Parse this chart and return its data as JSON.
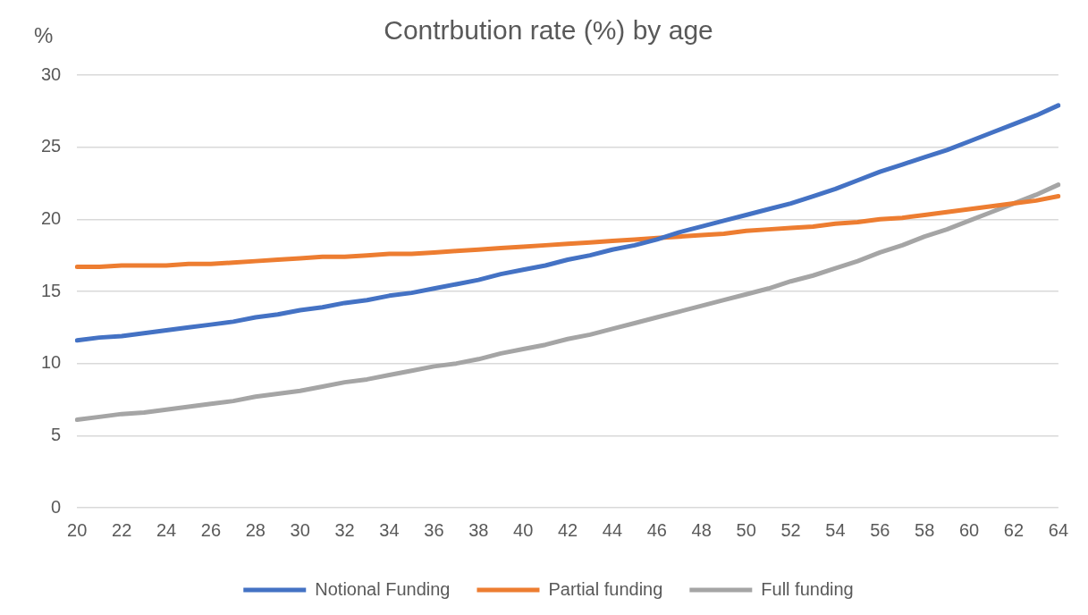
{
  "chart_data": {
    "type": "line",
    "title": "Contrbution rate (%) by age",
    "ylabel": "%",
    "categories": [
      "20",
      null,
      "22",
      null,
      "24",
      null,
      "26",
      null,
      "28",
      null,
      "30",
      null,
      "32",
      null,
      "34",
      null,
      "36",
      null,
      "38",
      null,
      "40",
      null,
      "42",
      null,
      "44",
      null,
      "46",
      null,
      "48",
      null,
      "50",
      null,
      "52",
      null,
      "54",
      null,
      "56",
      null,
      "58",
      null,
      "60",
      null,
      "62",
      null,
      "64"
    ],
    "series": [
      {
        "name": "Notional Funding",
        "color": "#4472c4",
        "values": [
          11.6,
          11.8,
          11.9,
          12.1,
          12.3,
          12.5,
          12.7,
          12.9,
          13.2,
          13.4,
          13.7,
          13.9,
          14.2,
          14.4,
          14.7,
          14.9,
          15.2,
          15.5,
          15.8,
          16.2,
          16.5,
          16.8,
          17.2,
          17.5,
          17.9,
          18.2,
          18.6,
          19.1,
          19.5,
          19.9,
          20.3,
          20.7,
          21.1,
          21.6,
          22.1,
          22.7,
          23.3,
          23.8,
          24.3,
          24.8,
          25.4,
          26.0,
          26.6,
          27.2,
          27.9
        ]
      },
      {
        "name": "Partial funding",
        "color": "#ed7d31",
        "values": [
          16.7,
          16.7,
          16.8,
          16.8,
          16.8,
          16.9,
          16.9,
          17.0,
          17.1,
          17.2,
          17.3,
          17.4,
          17.4,
          17.5,
          17.6,
          17.6,
          17.7,
          17.8,
          17.9,
          18.0,
          18.1,
          18.2,
          18.3,
          18.4,
          18.5,
          18.6,
          18.7,
          18.8,
          18.9,
          19.0,
          19.2,
          19.3,
          19.4,
          19.5,
          19.7,
          19.8,
          20.0,
          20.1,
          20.3,
          20.5,
          20.7,
          20.9,
          21.1,
          21.3,
          21.6
        ]
      },
      {
        "name": "Full funding",
        "color": "#a5a5a5",
        "values": [
          6.1,
          6.3,
          6.5,
          6.6,
          6.8,
          7.0,
          7.2,
          7.4,
          7.7,
          7.9,
          8.1,
          8.4,
          8.7,
          8.9,
          9.2,
          9.5,
          9.8,
          10.0,
          10.3,
          10.7,
          11.0,
          11.3,
          11.7,
          12.0,
          12.4,
          12.8,
          13.2,
          13.6,
          14.0,
          14.4,
          14.8,
          15.2,
          15.7,
          16.1,
          16.6,
          17.1,
          17.7,
          18.2,
          18.8,
          19.3,
          19.9,
          20.5,
          21.1,
          21.7,
          22.4
        ]
      }
    ],
    "ylim": [
      0,
      30
    ],
    "yticks": [
      0,
      5,
      10,
      15,
      20,
      25,
      30
    ],
    "grid": "y",
    "legend": "bottom",
    "marker": "none",
    "line_style": "solid"
  }
}
